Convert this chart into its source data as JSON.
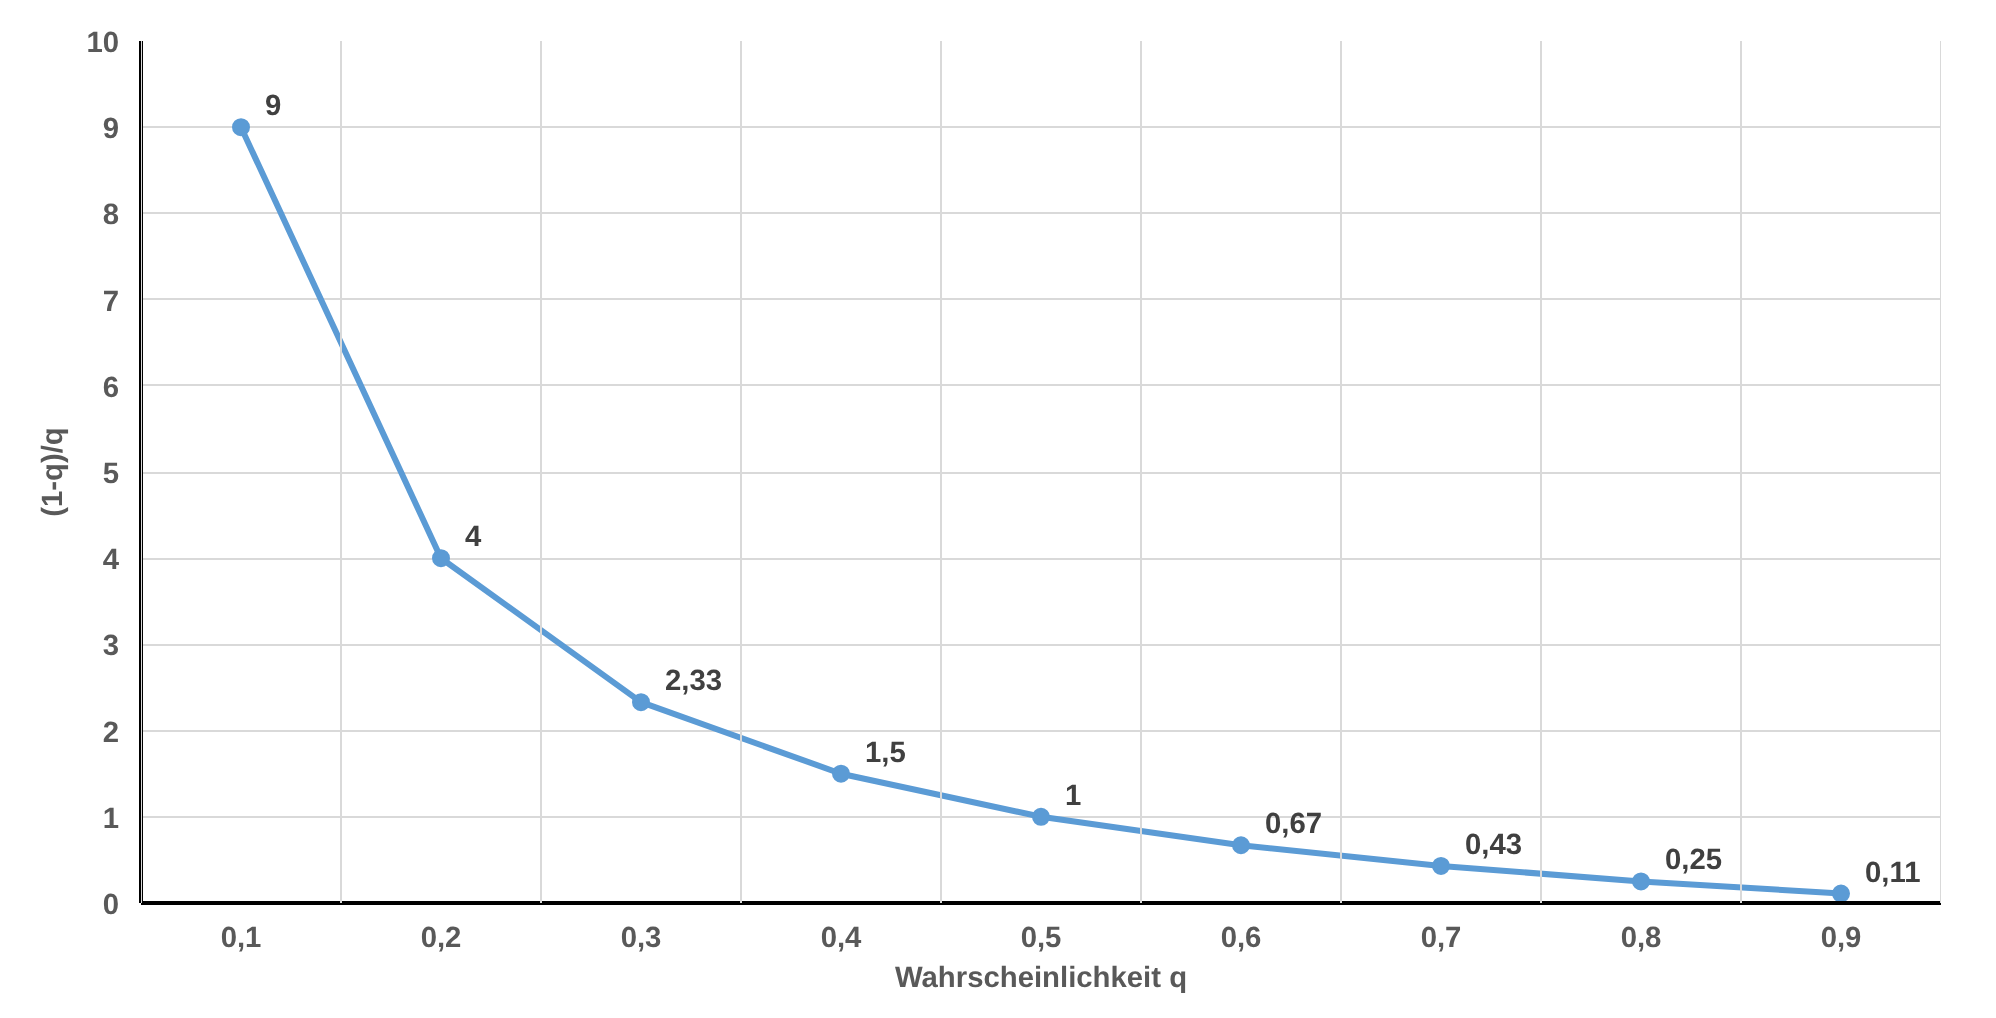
{
  "chart_data": {
    "type": "line",
    "xlabel": "Wahrscheinlichkeit q",
    "ylabel": "(1-q)/q",
    "categories": [
      "0,1",
      "0,2",
      "0,3",
      "0,4",
      "0,5",
      "0,6",
      "0,7",
      "0,8",
      "0,9"
    ],
    "series": [
      {
        "color": "#5b9bd5",
        "values": [
          9,
          4,
          2.33,
          1.5,
          1,
          0.67,
          0.43,
          0.25,
          0.11
        ],
        "value_labels": [
          "9",
          "4",
          "2,33",
          "1,5",
          "1",
          "0,67",
          "0,43",
          "0,25",
          "0,11"
        ]
      }
    ],
    "ylim": [
      0,
      10
    ],
    "yticks": [
      0,
      1,
      2,
      3,
      4,
      5,
      6,
      7,
      8,
      9,
      10
    ],
    "grid": true,
    "marker": "circle",
    "line_style": "solid"
  }
}
